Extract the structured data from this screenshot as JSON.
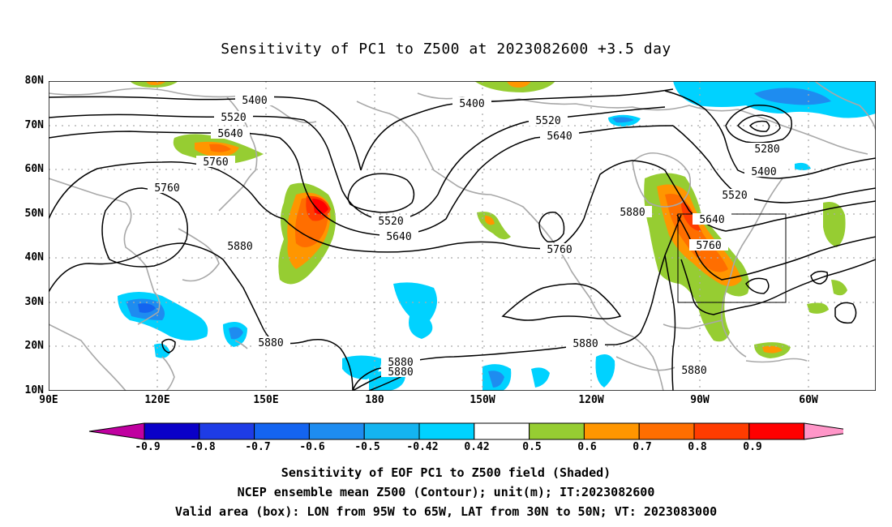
{
  "title": "Sensitivity of PC1 to Z500 at 2023082600 +3.5 day",
  "map": {
    "lat_labels": [
      "80N",
      "70N",
      "60N",
      "50N",
      "40N",
      "30N",
      "20N",
      "10N"
    ],
    "lon_labels": [
      "90E",
      "120E",
      "150E",
      "180",
      "150W",
      "120W",
      "90W",
      "60W"
    ],
    "contour_labels": [
      "5400",
      "5520",
      "5640",
      "5760",
      "5760",
      "5880",
      "5400",
      "5520",
      "5640",
      "5520",
      "5640",
      "5760",
      "5880",
      "5280",
      "5400",
      "5520",
      "5640",
      "5760",
      "5880",
      "5880",
      "5880",
      "5880",
      "5880"
    ],
    "valid_box": {
      "lon_from": "95W",
      "lon_to": "65W",
      "lat_from": "30N",
      "lat_to": "50N"
    }
  },
  "colorbar": {
    "labels": [
      "-0.9",
      "-0.8",
      "-0.7",
      "-0.6",
      "-0.5",
      "-0.42",
      "0.42",
      "0.5",
      "0.6",
      "0.7",
      "0.8",
      "0.9"
    ],
    "colors": [
      "#c000a0",
      "#0a00c8",
      "#1e3ce6",
      "#1464f0",
      "#1e8cf0",
      "#14b4f0",
      "#00d2ff",
      "#ffffff",
      "#96cd32",
      "#ff9600",
      "#ff6e00",
      "#ff3c00",
      "#ff0000",
      "#ff96c8"
    ]
  },
  "caption": {
    "line1": "Sensitivity of EOF PC1 to Z500 field (Shaded)",
    "line2": "NCEP ensemble mean Z500 (Contour); unit(m); IT:2023082600",
    "line3": "Valid area (box): LON from 95W to 65W, LAT from 30N to 50N; VT: 2023083000"
  }
}
